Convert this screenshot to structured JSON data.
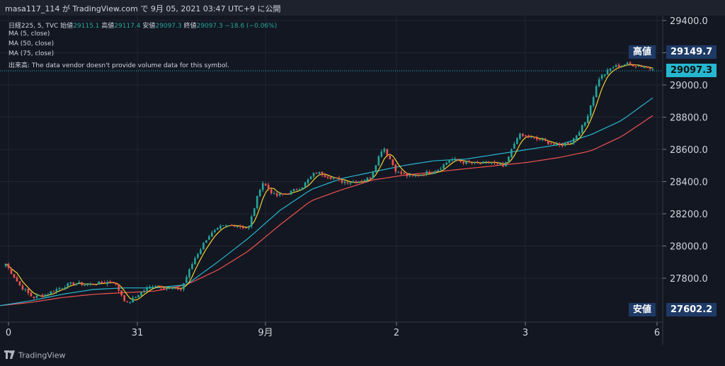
{
  "header": {
    "publish_text": "masa117_114 が TradingView.com で 9月 05, 2021 03:47 UTC+9 に公開"
  },
  "legend": {
    "symbol": "日経225, 5, TVC",
    "open_label": "始値",
    "open_value": "29115.1",
    "high_label": "高値",
    "high_value": "29117.4",
    "low_label": "安値",
    "low_value": "29097.3",
    "close_label": "終値",
    "close_value": "29097.3",
    "change": "−18.6 (−0.06%)",
    "ma1": "MA (5, close)",
    "ma2": "MA (50, close)",
    "ma3": "MA (75, close)",
    "volume": "出来高: The data vendor doesn't provide volume data for this symbol."
  },
  "tags": {
    "high_name": "高値",
    "high_value": "29149.7",
    "current_value": "29097.3",
    "low_name": "安値",
    "low_value": "27602.2"
  },
  "footer": {
    "brand": "TradingView"
  },
  "colors": {
    "up": "#26a69a",
    "down": "#ef5350",
    "ma5": "#f5d12f",
    "ma50": "#26b7d0",
    "ma75": "#ef5350",
    "grid": "#232632",
    "background": "#131722"
  },
  "chart_data": {
    "type": "candlestick",
    "yticks": [
      "29400.0",
      "29200.0",
      "29000.0",
      "28800.0",
      "28600.0",
      "28400.0",
      "28200.0",
      "28000.0",
      "27800.0"
    ],
    "ylim": [
      27520,
      29440
    ],
    "xticks": [
      "0",
      "31",
      "9月",
      "2",
      "3",
      "6"
    ],
    "grid": true,
    "series": [
      {
        "name": "MA (5, close)"
      },
      {
        "name": "MA (50, close)"
      },
      {
        "name": "MA (75, close)"
      }
    ],
    "price_path": [
      27890,
      27760,
      27680,
      27700,
      27740,
      27770,
      27760,
      27770,
      27780,
      27640,
      27710,
      27760,
      27740,
      27730,
      27920,
      28060,
      28120,
      28130,
      28110,
      28400,
      28310,
      28330,
      28370,
      28460,
      28430,
      28400,
      28400,
      28420,
      28620,
      28460,
      28430,
      28450,
      28470,
      28540,
      28520,
      28510,
      28520,
      28490,
      28690,
      28670,
      28650,
      28620,
      28650,
      28770,
      29040,
      29110,
      29130,
      29120,
      29097.3
    ],
    "ma50_path": [
      27630,
      27660,
      27700,
      27730,
      27740,
      27740,
      27760,
      27900,
      28050,
      28220,
      28350,
      28420,
      28460,
      28500,
      28530,
      28540,
      28570,
      28600,
      28630,
      28690,
      28780,
      28920
    ],
    "ma75_path": [
      27630,
      27650,
      27680,
      27700,
      27710,
      27720,
      27760,
      27850,
      27970,
      28130,
      28280,
      28350,
      28410,
      28440,
      28460,
      28480,
      28500,
      28520,
      28550,
      28590,
      28680,
      28810
    ]
  }
}
